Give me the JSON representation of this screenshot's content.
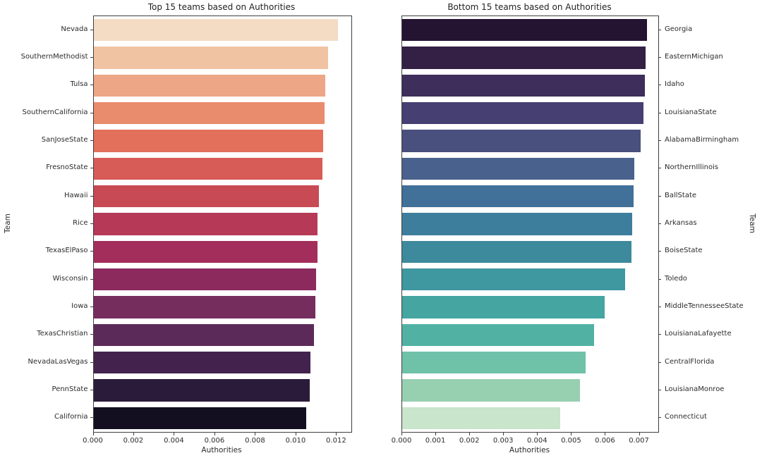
{
  "chart_data": [
    {
      "type": "bar",
      "orientation": "horizontal",
      "title": "Top 15 teams based on Authorities",
      "xlabel": "Authorities",
      "ylabel": "Team",
      "categories": [
        "Nevada",
        "SouthernMethodist",
        "Tulsa",
        "SouthernCalifornia",
        "SanJoseState",
        "FresnoState",
        "Hawaii",
        "Rice",
        "TexasElPaso",
        "Wisconsin",
        "Iowa",
        "TexasChristian",
        "NevadaLasVegas",
        "PennState",
        "California"
      ],
      "values": [
        0.01207,
        0.01157,
        0.01143,
        0.01139,
        0.01131,
        0.01129,
        0.0111,
        0.01106,
        0.01103,
        0.01098,
        0.01096,
        0.01087,
        0.01071,
        0.01066,
        0.0105
      ],
      "palette": "rocket",
      "colors": [
        "#f4dcc4",
        "#f0c3a3",
        "#eda786",
        "#e98b6d",
        "#e2705a",
        "#d75b56",
        "#c84a55",
        "#b63a57",
        "#a32e5b",
        "#8c2a5e",
        "#752d5e",
        "#5c2a59",
        "#43234d",
        "#2b1b3a",
        "#130f21"
      ],
      "xlim": [
        0,
        0.0127
      ],
      "xticks": [
        0,
        0.002,
        0.004,
        0.006,
        0.008,
        0.01,
        0.012
      ],
      "xtick_labels": [
        "0.000",
        "0.002",
        "0.004",
        "0.006",
        "0.008",
        "0.010",
        "0.012"
      ],
      "label_side": "left",
      "grid": false,
      "legend": "none"
    },
    {
      "type": "bar",
      "orientation": "horizontal",
      "title": "Bottom 15 teams based on Authorities",
      "xlabel": "Authorities",
      "ylabel": "Team",
      "categories": [
        "Georgia",
        "EasternMichigan",
        "Idaho",
        "LouisianaState",
        "AlabamaBirmingham",
        "NorthernIllinois",
        "BallState",
        "Arkansas",
        "BoiseState",
        "Toledo",
        "MiddleTennesseeState",
        "LouisianaLafayette",
        "CentralFlorida",
        "LouisianaMonroe",
        "Connecticut"
      ],
      "values": [
        0.00721,
        0.00718,
        0.00715,
        0.00711,
        0.00703,
        0.00685,
        0.00682,
        0.00678,
        0.00676,
        0.00657,
        0.00597,
        0.00566,
        0.0054,
        0.00525,
        0.00465
      ],
      "palette": "mako",
      "colors": [
        "#241331",
        "#332044",
        "#3d2e5b",
        "#453f72",
        "#49507e",
        "#49618d",
        "#417099",
        "#3e7e9d",
        "#3e8a9d",
        "#3f97a0",
        "#44a5a1",
        "#51b2a3",
        "#6fc1a8",
        "#97cfb1",
        "#c9e5cb"
      ],
      "xlim": [
        0,
        0.00755
      ],
      "xticks": [
        0,
        0.001,
        0.002,
        0.003,
        0.004,
        0.005,
        0.006,
        0.007
      ],
      "xtick_labels": [
        "0.000",
        "0.001",
        "0.002",
        "0.003",
        "0.004",
        "0.005",
        "0.006",
        "0.007"
      ],
      "label_side": "right",
      "grid": false,
      "legend": "none"
    }
  ]
}
